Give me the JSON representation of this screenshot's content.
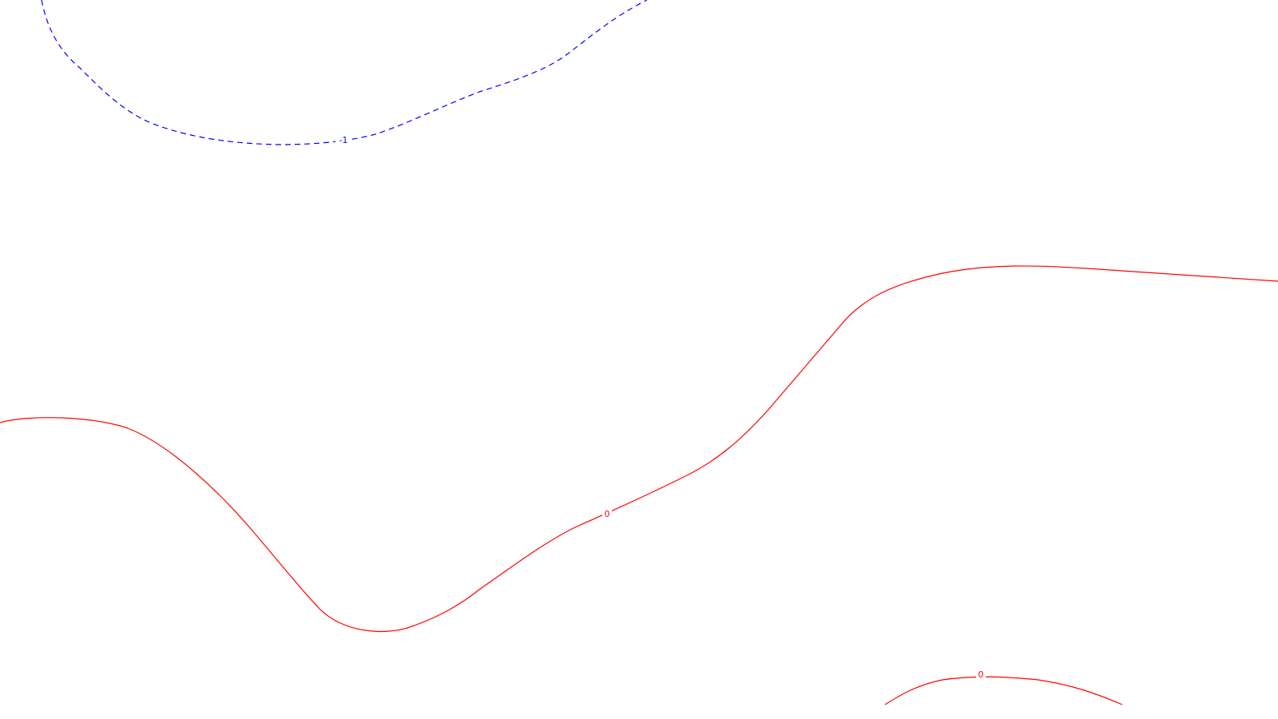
{
  "chart_data": {
    "type": "contour",
    "title": "",
    "xlabel": "",
    "ylabel": "",
    "grid": false,
    "contours": [
      {
        "level": -1,
        "label": "-1",
        "color": "#0000ff",
        "style": "dashed"
      },
      {
        "level": 0,
        "label": "0",
        "color": "#ff0000",
        "style": "solid"
      },
      {
        "level": 0,
        "label": "0",
        "color": "#ff0000",
        "style": "solid"
      }
    ]
  }
}
